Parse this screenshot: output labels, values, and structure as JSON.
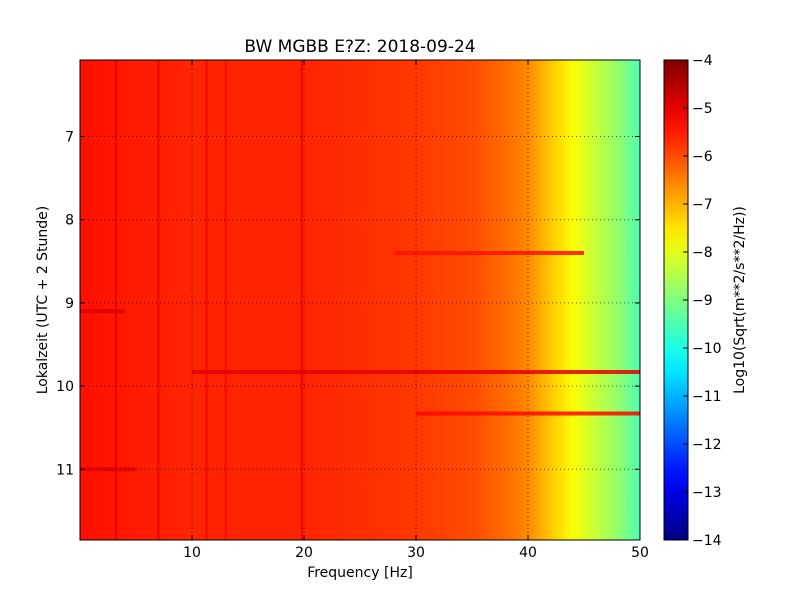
{
  "chart_data": {
    "type": "heatmap",
    "title": "BW MGBB E?Z: 2018-09-24",
    "xlabel": "Frequency [Hz]",
    "ylabel": "Lokalzeit (UTC + 2 Stunde)",
    "xlim": [
      0,
      50
    ],
    "ylim": [
      11.85,
      6.08
    ],
    "y_inverted": true,
    "grid": true,
    "x_ticks": [
      10,
      20,
      30,
      40,
      50
    ],
    "y_ticks": [
      7,
      8,
      9,
      10,
      11
    ],
    "colorbar": {
      "label": "Log10(Sqrt(m**2/s**2/Hz))",
      "range": [
        -14,
        -4
      ],
      "ticks": [
        -4,
        -5,
        -6,
        -7,
        -8,
        -9,
        -10,
        -11,
        -12,
        -13,
        -14
      ],
      "colormap": "jet"
    },
    "frequency_profile": {
      "x": [
        0,
        5,
        10,
        15,
        20,
        25,
        30,
        35,
        38,
        40,
        42,
        44,
        46,
        48,
        50
      ],
      "values": [
        -5.4,
        -5.5,
        -5.6,
        -5.6,
        -5.6,
        -5.7,
        -5.8,
        -6.0,
        -6.3,
        -6.6,
        -7.2,
        -7.8,
        -8.3,
        -8.8,
        -9.5
      ]
    },
    "features": [
      {
        "kind": "horizontal_band",
        "time": 9.83,
        "x_range": [
          10,
          50
        ],
        "level": -5.0
      },
      {
        "kind": "horizontal_band",
        "time": 10.33,
        "x_range": [
          30,
          50
        ],
        "level": -5.3
      },
      {
        "kind": "horizontal_band",
        "time": 8.4,
        "x_range": [
          28,
          45
        ],
        "level": -5.4
      },
      {
        "kind": "horizontal_band",
        "time": 9.1,
        "x_range": [
          0,
          4
        ],
        "level": -4.9
      },
      {
        "kind": "horizontal_band",
        "time": 11.0,
        "x_range": [
          0,
          5
        ],
        "level": -5.0
      },
      {
        "kind": "vertical_line",
        "x": 3.2,
        "time_range": [
          6.08,
          11.85
        ],
        "level": -4.9
      },
      {
        "kind": "vertical_line",
        "x": 7.0,
        "time_range": [
          6.08,
          11.85
        ],
        "level": -5.0
      },
      {
        "kind": "vertical_line",
        "x": 19.8,
        "time_range": [
          6.08,
          11.85
        ],
        "level": -5.0
      },
      {
        "kind": "vertical_line",
        "x": 11.3,
        "time_range": [
          6.08,
          11.85
        ],
        "level": -5.1
      },
      {
        "kind": "vertical_line",
        "x": 13.0,
        "time_range": [
          6.08,
          11.85
        ],
        "level": -5.2
      }
    ]
  }
}
